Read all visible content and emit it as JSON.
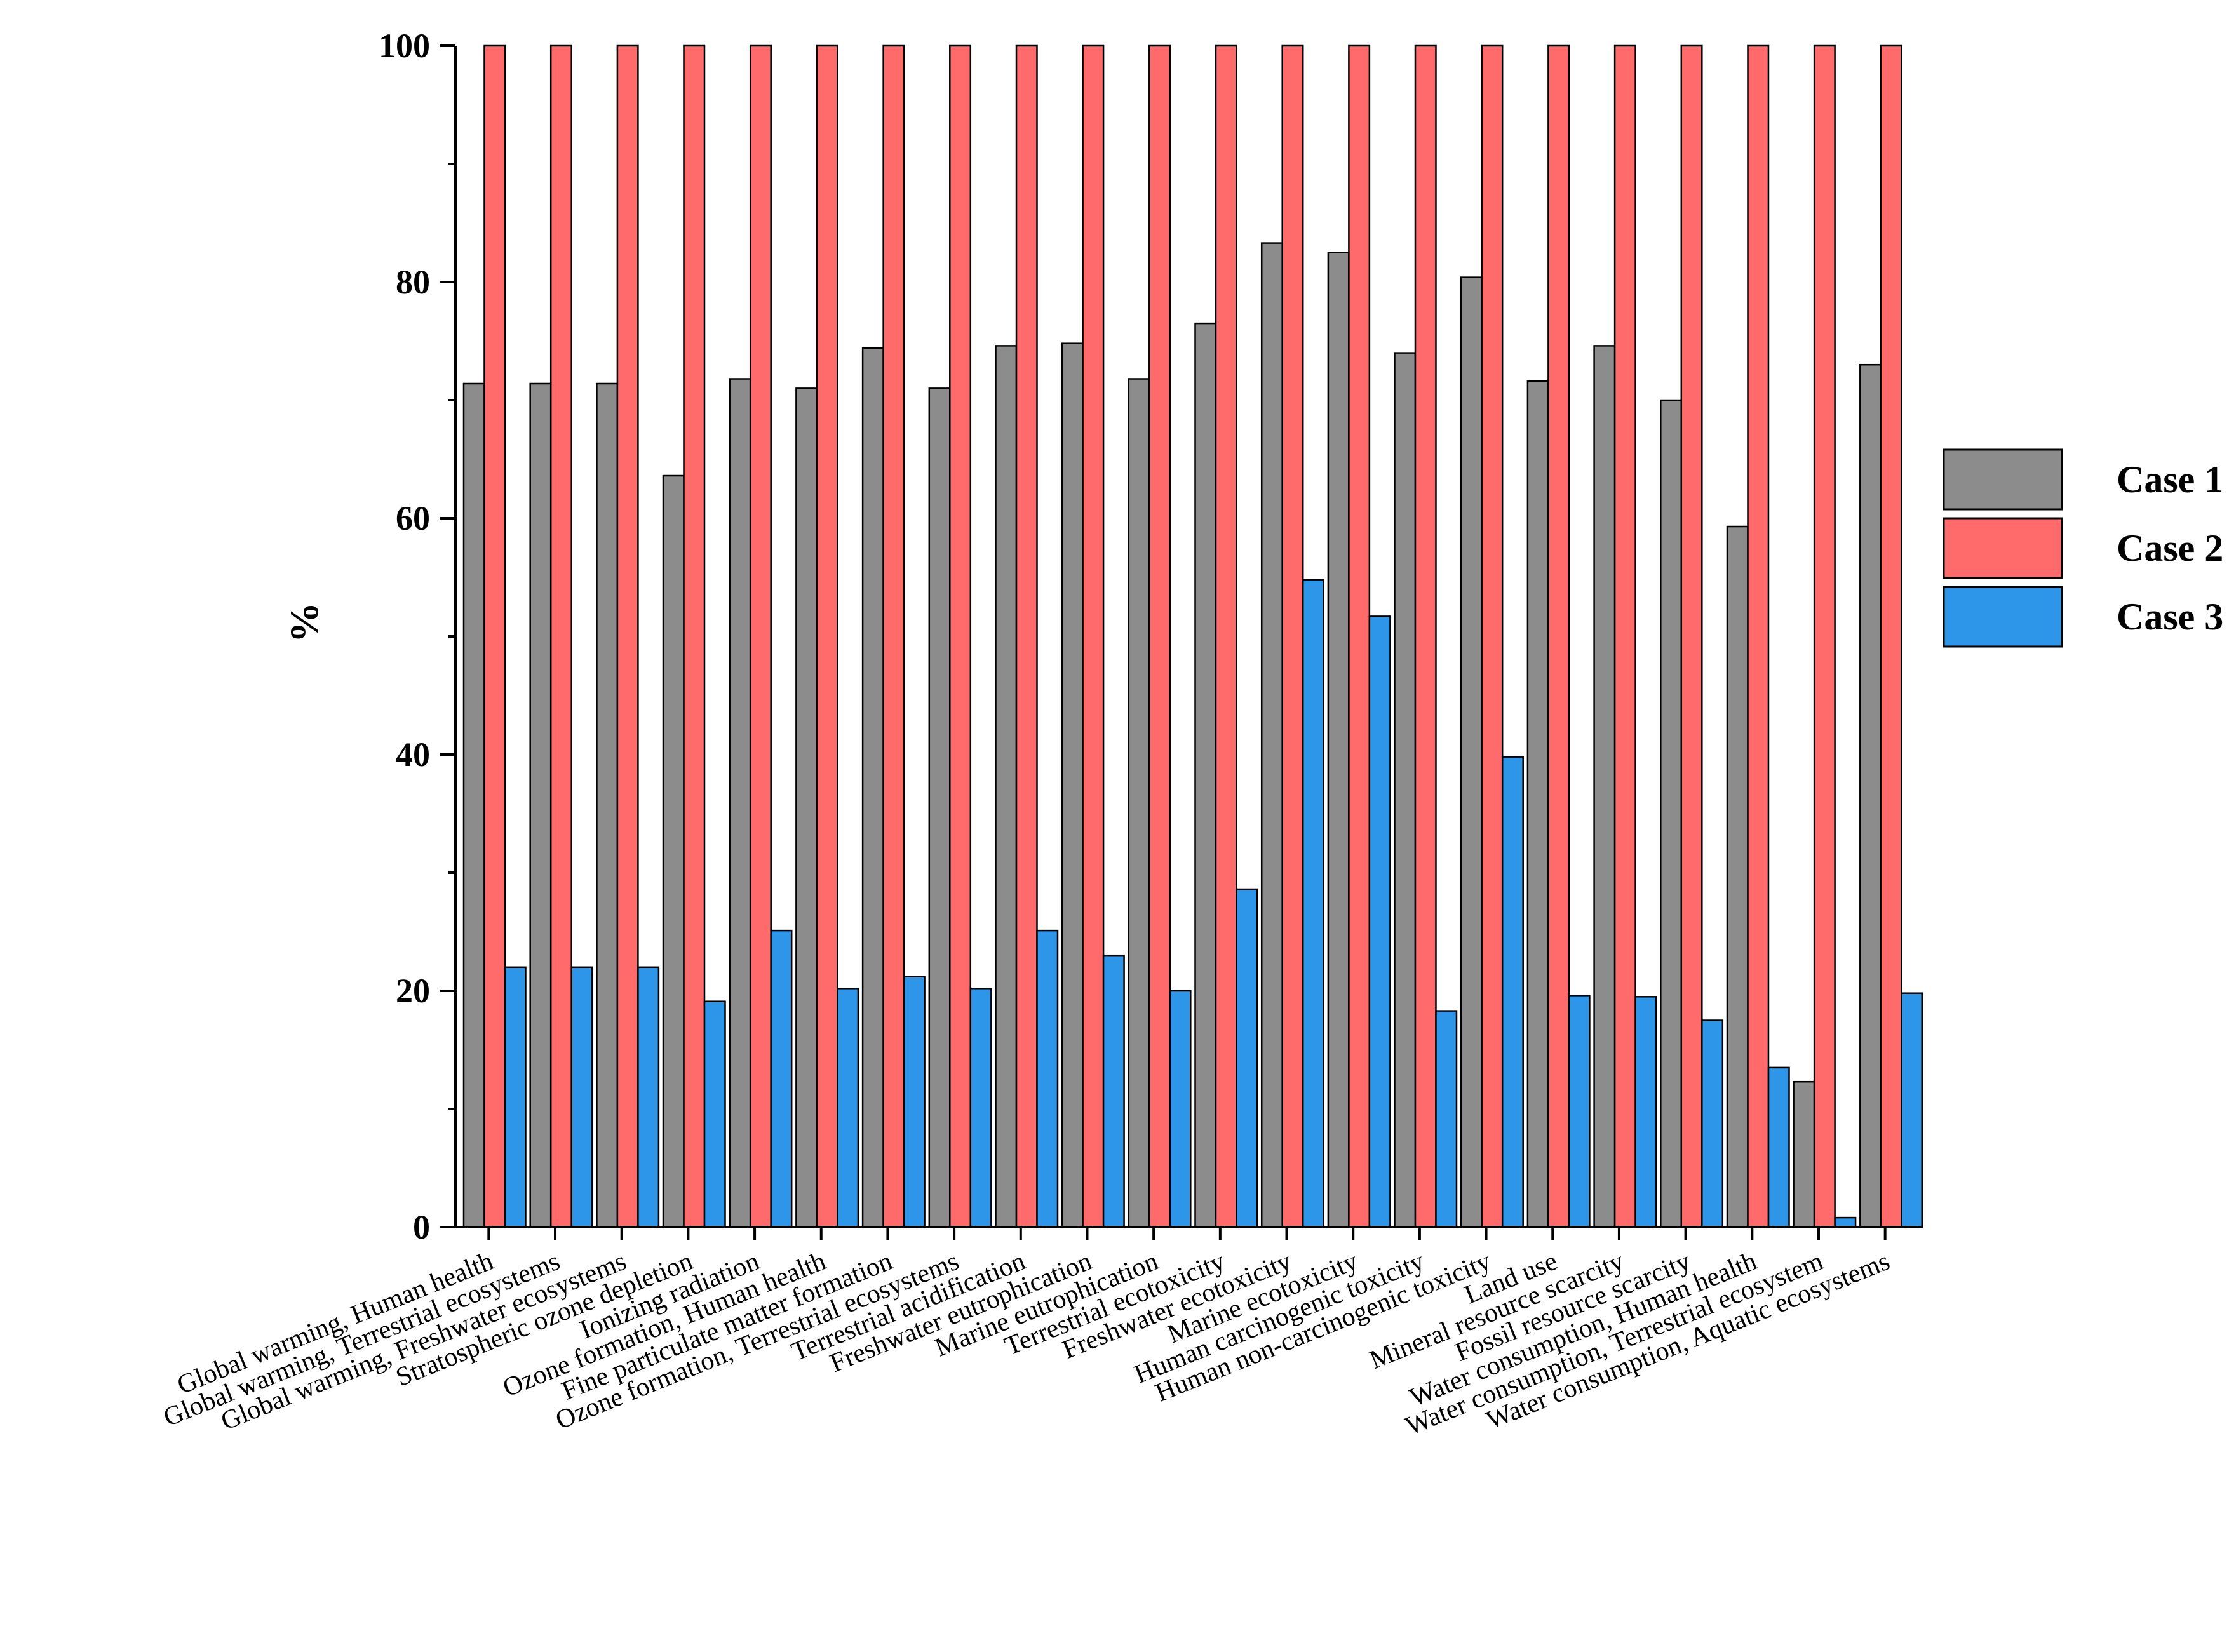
{
  "chart_data": {
    "type": "bar",
    "title": "",
    "xlabel": "",
    "ylabel": "%",
    "ylim": [
      0,
      100
    ],
    "yticks": [
      0,
      20,
      40,
      60,
      80,
      100
    ],
    "grid": false,
    "legend_position": "right",
    "categories": [
      "Global warming, Human health",
      "Global warming, Terrestrial ecosystems",
      "Global warming, Freshwater ecosystems",
      "Stratospheric ozone depletion",
      "Ionizing radiation",
      "Ozone formation, Human health",
      "Fine particulate matter formation",
      "Ozone formation, Terrestrial ecosystems",
      "Terrestrial acidification",
      "Freshwater eutrophication",
      "Marine eutrophication",
      "Terrestrial ecotoxicity",
      "Freshwater ecotoxicity",
      "Marine ecotoxicity",
      "Human carcinogenic toxicity",
      "Human non-carcinogenic toxicity",
      "Land use",
      "Mineral resource scarcity",
      "Fossil resource scarcity",
      "Water consumption, Human health",
      "Water consumption, Terrestrial ecosystem",
      "Water consumption, Aquatic ecosystems"
    ],
    "series": [
      {
        "name": "Case 1",
        "color": "#8c8c8c",
        "values": [
          71.4,
          71.4,
          71.4,
          63.6,
          71.8,
          71.0,
          74.4,
          71.0,
          74.6,
          74.8,
          71.8,
          76.5,
          83.3,
          82.5,
          74.0,
          80.4,
          71.6,
          74.6,
          70.0,
          59.3,
          12.3,
          73.0
        ]
      },
      {
        "name": "Case 2",
        "color": "#ff6b6b",
        "values": [
          100,
          100,
          100,
          100,
          100,
          100,
          100,
          100,
          100,
          100,
          100,
          100,
          100,
          100,
          100,
          100,
          100,
          100,
          100,
          100,
          100,
          100
        ]
      },
      {
        "name": "Case 3",
        "color": "#2e96e8",
        "values": [
          22.0,
          22.0,
          22.0,
          19.1,
          25.1,
          20.2,
          21.2,
          20.2,
          25.1,
          23.0,
          20.0,
          28.6,
          54.8,
          51.7,
          18.3,
          39.8,
          19.6,
          19.5,
          17.5,
          13.5,
          0.8,
          19.8
        ]
      }
    ]
  }
}
